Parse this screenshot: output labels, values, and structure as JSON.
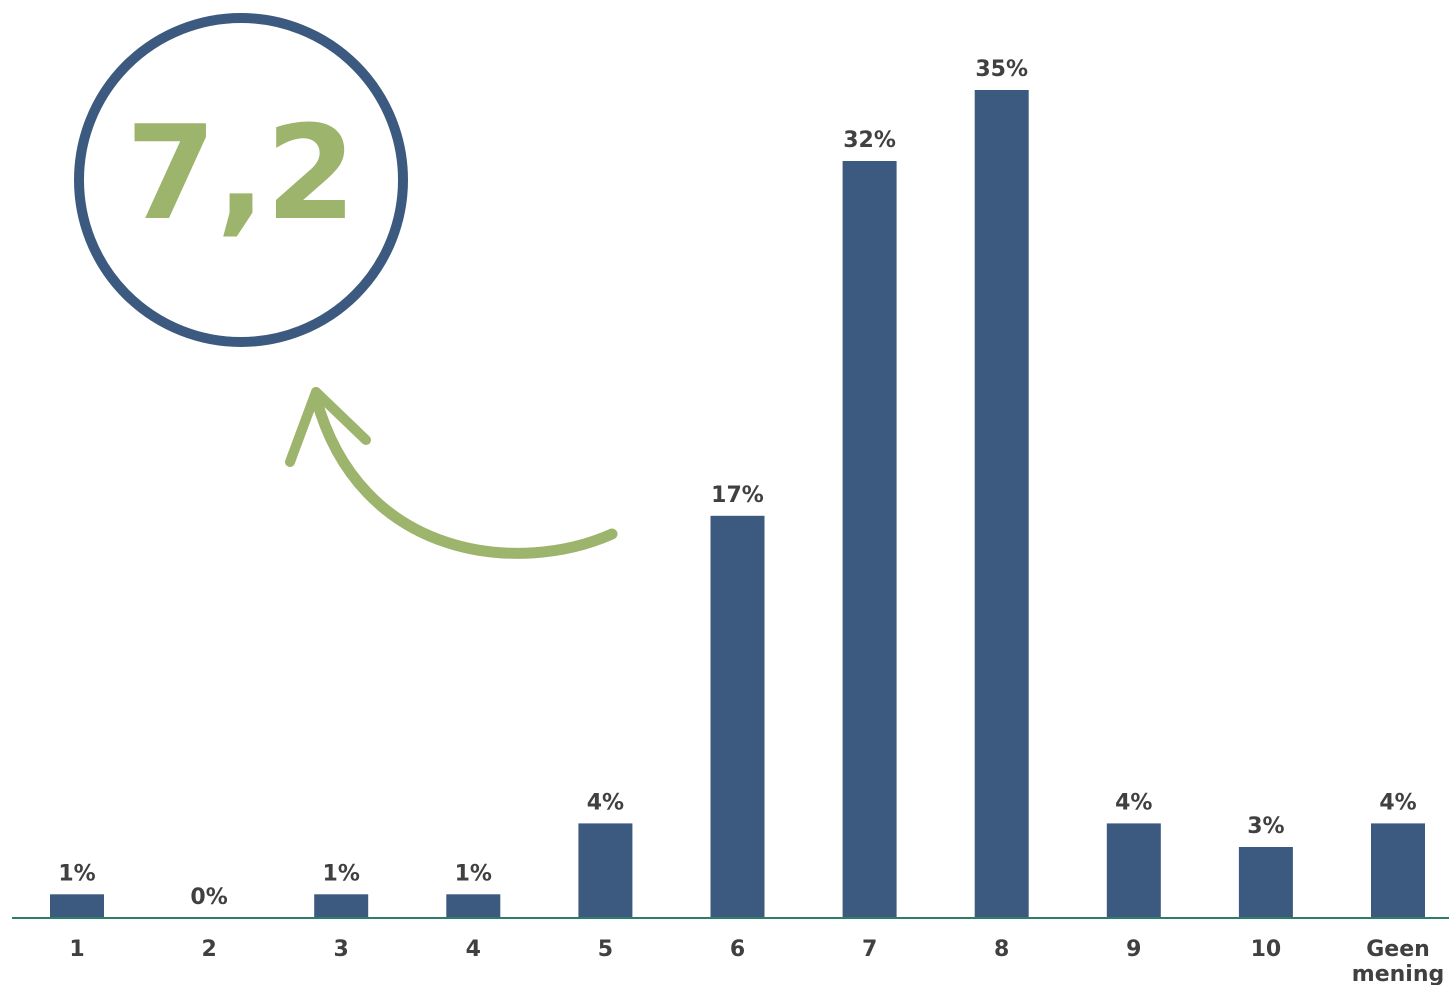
{
  "colors": {
    "bar": "#3c5a80",
    "axis": "#2e7d6b",
    "accent": "#9cb46b",
    "circle": "#3c5a80",
    "text": "#404040"
  },
  "score": {
    "value": "7,2"
  },
  "annotation": {
    "icon": "curved-arrow-icon"
  },
  "chart_data": {
    "type": "bar",
    "title": "",
    "xlabel": "",
    "ylabel": "",
    "categories": [
      "1",
      "2",
      "3",
      "4",
      "5",
      "6",
      "7",
      "8",
      "9",
      "10",
      "Geen mening"
    ],
    "values": [
      1,
      0,
      1,
      1,
      4,
      17,
      32,
      35,
      4,
      3,
      4
    ],
    "labels": [
      "1%",
      "0%",
      "1%",
      "1%",
      "4%",
      "17%",
      "32%",
      "35%",
      "4%",
      "3%",
      "4%"
    ],
    "ylim": [
      0,
      36
    ],
    "grid": false,
    "legend": "none"
  }
}
